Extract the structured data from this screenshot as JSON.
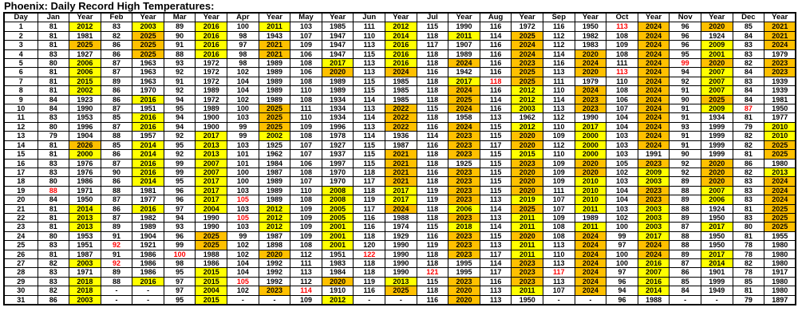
{
  "title": "Phoenix: Daily Record High Temperatures:",
  "columns": [
    "Day",
    "Jan",
    "Year",
    "Feb",
    "Year",
    "Mar",
    "Year",
    "Apr",
    "Year",
    "May",
    "Year",
    "Jun",
    "Year",
    "Jul",
    "Year",
    "Aug",
    "Year",
    "Sep",
    "Year",
    "Oct",
    "Year",
    "Nov",
    "Year",
    "Dec",
    "Year"
  ],
  "months": [
    "Jan",
    "Feb",
    "Mar",
    "Apr",
    "May",
    "Jun",
    "Jul",
    "Aug",
    "Sep",
    "Oct",
    "Nov",
    "Dec"
  ],
  "colors": {
    "highlight_year_2020s": "#FFC000",
    "highlight_year_2000_2019": "#FFFF00",
    "record_temp_red": "#FF0000",
    "grid_border": "#000000"
  },
  "highlight_rules": {
    "orange_min_year": 2020,
    "yellow_min_year": 2000
  },
  "red_cells": [
    {
      "day": 1,
      "month": "Oct"
    },
    {
      "day": 5,
      "month": "Nov"
    },
    {
      "day": 6,
      "month": "Oct"
    },
    {
      "day": 7,
      "month": "Aug"
    },
    {
      "day": 10,
      "month": "Dec"
    },
    {
      "day": 19,
      "month": "Jan"
    },
    {
      "day": 20,
      "month": "Apr"
    },
    {
      "day": 22,
      "month": "Apr"
    },
    {
      "day": 25,
      "month": "Feb"
    },
    {
      "day": 26,
      "month": "Mar"
    },
    {
      "day": 26,
      "month": "Jun"
    },
    {
      "day": 27,
      "month": "Feb"
    },
    {
      "day": 28,
      "month": "Jul"
    },
    {
      "day": 28,
      "month": "Sep"
    },
    {
      "day": 29,
      "month": "Apr"
    },
    {
      "day": 30,
      "month": "May"
    }
  ],
  "rows": [
    {
      "day": "1",
      "values": [
        "81",
        "2012",
        "83",
        "2003",
        "89",
        "2016",
        "100",
        "2011",
        "103",
        "1985",
        "111",
        "2012",
        "115",
        "1990",
        "116",
        "1972",
        "116",
        "1950",
        "113",
        "2024",
        "96",
        "2020",
        "85",
        "2021"
      ]
    },
    {
      "day": "2",
      "values": [
        "81",
        "1981",
        "82",
        "2025",
        "90",
        "2016",
        "98",
        "1943",
        "107",
        "1947",
        "110",
        "2014",
        "118",
        "2011",
        "114",
        "2025",
        "112",
        "1982",
        "108",
        "2024",
        "96",
        "1924",
        "84",
        "2021"
      ]
    },
    {
      "day": "3",
      "values": [
        "81",
        "2025",
        "86",
        "2025",
        "91",
        "2016",
        "97",
        "2021",
        "109",
        "1947",
        "113",
        "2016",
        "117",
        "1907",
        "116",
        "2024",
        "112",
        "1983",
        "109",
        "2024",
        "96",
        "2009",
        "83",
        "2024"
      ]
    },
    {
      "day": "4",
      "values": [
        "83",
        "1927",
        "86",
        "2025",
        "88",
        "2016",
        "98",
        "2021",
        "106",
        "1947",
        "115",
        "2016",
        "118",
        "1989",
        "116",
        "2024",
        "114",
        "2020",
        "108",
        "2024",
        "95",
        "2001",
        "83",
        "1979"
      ]
    },
    {
      "day": "5",
      "values": [
        "80",
        "2006",
        "87",
        "1963",
        "93",
        "1972",
        "98",
        "1989",
        "108",
        "2017",
        "113",
        "2016",
        "118",
        "2024",
        "116",
        "2023",
        "116",
        "2024",
        "111",
        "2024",
        "99",
        "2020",
        "82",
        "2023"
      ]
    },
    {
      "day": "6",
      "values": [
        "81",
        "2006",
        "87",
        "1963",
        "92",
        "1972",
        "102",
        "1989",
        "106",
        "2020",
        "113",
        "2024",
        "116",
        "1942",
        "116",
        "2025",
        "113",
        "2020",
        "113",
        "2024",
        "94",
        "2007",
        "84",
        "2023"
      ]
    },
    {
      "day": "7",
      "values": [
        "81",
        "2015",
        "89",
        "1963",
        "91",
        "1972",
        "104",
        "1989",
        "108",
        "1989",
        "115",
        "1985",
        "118",
        "2017",
        "118",
        "2025",
        "111",
        "1979",
        "110",
        "2024",
        "92",
        "2007",
        "83",
        "1939"
      ]
    },
    {
      "day": "8",
      "values": [
        "81",
        "2002",
        "86",
        "1970",
        "92",
        "1989",
        "104",
        "1989",
        "110",
        "1989",
        "115",
        "1985",
        "118",
        "2024",
        "116",
        "2012",
        "110",
        "2024",
        "108",
        "2024",
        "91",
        "2007",
        "84",
        "1939"
      ]
    },
    {
      "day": "9",
      "values": [
        "84",
        "1923",
        "86",
        "2016",
        "94",
        "1972",
        "102",
        "1989",
        "108",
        "1934",
        "114",
        "1985",
        "118",
        "2025",
        "114",
        "2012",
        "114",
        "2023",
        "106",
        "2024",
        "90",
        "2025",
        "84",
        "1981"
      ]
    },
    {
      "day": "10",
      "values": [
        "84",
        "1990",
        "87",
        "1951",
        "95",
        "1989",
        "100",
        "2025",
        "111",
        "1934",
        "113",
        "2022",
        "115",
        "2024",
        "116",
        "2003",
        "113",
        "2023",
        "107",
        "2024",
        "91",
        "2009",
        "87",
        "1950"
      ]
    },
    {
      "day": "11",
      "values": [
        "83",
        "1953",
        "85",
        "2016",
        "94",
        "1900",
        "103",
        "2025",
        "110",
        "1934",
        "114",
        "2022",
        "118",
        "1958",
        "113",
        "1962",
        "112",
        "1990",
        "104",
        "2024",
        "91",
        "1934",
        "81",
        "1977"
      ]
    },
    {
      "day": "12",
      "values": [
        "80",
        "1996",
        "87",
        "2016",
        "94",
        "1900",
        "99",
        "2025",
        "109",
        "1996",
        "113",
        "2022",
        "116",
        "2024",
        "115",
        "2012",
        "110",
        "2017",
        "104",
        "2024",
        "93",
        "1999",
        "79",
        "2010"
      ]
    },
    {
      "day": "13",
      "values": [
        "79",
        "1904",
        "88",
        "1957",
        "92",
        "2017",
        "99",
        "2002",
        "108",
        "1978",
        "114",
        "1936",
        "114",
        "2023",
        "115",
        "2020",
        "109",
        "2000",
        "103",
        "2024",
        "91",
        "1999",
        "82",
        "2010"
      ]
    },
    {
      "day": "14",
      "values": [
        "81",
        "2026",
        "85",
        "2014",
        "95",
        "2013",
        "103",
        "1925",
        "107",
        "1927",
        "115",
        "1987",
        "116",
        "2023",
        "117",
        "2020",
        "112",
        "2000",
        "103",
        "2024",
        "91",
        "1999",
        "82",
        "2025"
      ]
    },
    {
      "day": "15",
      "values": [
        "81",
        "2000",
        "86",
        "2014",
        "92",
        "2013",
        "101",
        "1962",
        "107",
        "1937",
        "115",
        "2021",
        "118",
        "2023",
        "115",
        "2015",
        "110",
        "2000",
        "103",
        "1991",
        "90",
        "1999",
        "81",
        "2025"
      ]
    },
    {
      "day": "16",
      "values": [
        "83",
        "1976",
        "87",
        "2016",
        "99",
        "2007",
        "101",
        "1984",
        "106",
        "1997",
        "115",
        "2021",
        "118",
        "1925",
        "115",
        "2023",
        "109",
        "2020",
        "105",
        "2023",
        "92",
        "2020",
        "86",
        "1980"
      ]
    },
    {
      "day": "17",
      "values": [
        "83",
        "1976",
        "90",
        "2016",
        "99",
        "2007",
        "100",
        "1987",
        "108",
        "1970",
        "118",
        "2021",
        "116",
        "2023",
        "115",
        "2020",
        "109",
        "2020",
        "102",
        "2009",
        "92",
        "2020",
        "82",
        "2013"
      ]
    },
    {
      "day": "18",
      "values": [
        "80",
        "1986",
        "86",
        "2014",
        "95",
        "2017",
        "100",
        "1989",
        "107",
        "1970",
        "117",
        "2021",
        "118",
        "2023",
        "115",
        "2020",
        "109",
        "2010",
        "103",
        "2003",
        "89",
        "2020",
        "83",
        "2024"
      ]
    },
    {
      "day": "19",
      "values": [
        "88",
        "1971",
        "88",
        "1981",
        "96",
        "2017",
        "103",
        "1989",
        "110",
        "2008",
        "118",
        "2017",
        "119",
        "2023",
        "115",
        "2020",
        "111",
        "2010",
        "104",
        "2023",
        "88",
        "2007",
        "83",
        "2024"
      ]
    },
    {
      "day": "20",
      "values": [
        "84",
        "1950",
        "87",
        "1977",
        "96",
        "2017",
        "105",
        "1989",
        "108",
        "2008",
        "119",
        "2017",
        "119",
        "2023",
        "113",
        "2019",
        "107",
        "2010",
        "104",
        "2023",
        "89",
        "2006",
        "83",
        "2024"
      ]
    },
    {
      "day": "21",
      "values": [
        "81",
        "2014",
        "86",
        "2016",
        "97",
        "2004",
        "103",
        "2012",
        "109",
        "2005",
        "117",
        "2024",
        "118",
        "2006",
        "114",
        "2025",
        "107",
        "2011",
        "103",
        "2003",
        "88",
        "1924",
        "81",
        "2025"
      ]
    },
    {
      "day": "22",
      "values": [
        "81",
        "2013",
        "87",
        "1982",
        "94",
        "1990",
        "105",
        "2012",
        "109",
        "2005",
        "116",
        "1988",
        "118",
        "2023",
        "113",
        "2011",
        "109",
        "1989",
        "102",
        "2003",
        "89",
        "1950",
        "83",
        "2025"
      ]
    },
    {
      "day": "23",
      "values": [
        "81",
        "2013",
        "89",
        "1989",
        "93",
        "1990",
        "103",
        "2012",
        "109",
        "2001",
        "116",
        "1974",
        "115",
        "2018",
        "114",
        "2011",
        "108",
        "2011",
        "100",
        "2003",
        "87",
        "2017",
        "80",
        "2025"
      ]
    },
    {
      "day": "24",
      "values": [
        "80",
        "1953",
        "91",
        "1904",
        "96",
        "2025",
        "99",
        "1987",
        "109",
        "2001",
        "118",
        "1929",
        "116",
        "2023",
        "115",
        "2020",
        "108",
        "2024",
        "99",
        "2017",
        "88",
        "1950",
        "81",
        "1955"
      ]
    },
    {
      "day": "25",
      "values": [
        "83",
        "1951",
        "92",
        "1921",
        "99",
        "2025",
        "102",
        "1898",
        "108",
        "2001",
        "120",
        "1990",
        "119",
        "2023",
        "113",
        "2011",
        "113",
        "2024",
        "97",
        "2024",
        "88",
        "1950",
        "78",
        "1980"
      ]
    },
    {
      "day": "26",
      "values": [
        "81",
        "1987",
        "91",
        "1986",
        "100",
        "1988",
        "102",
        "2020",
        "112",
        "1951",
        "122",
        "1990",
        "118",
        "2023",
        "117",
        "2011",
        "110",
        "2024",
        "100",
        "2024",
        "89",
        "2017",
        "78",
        "1980"
      ]
    },
    {
      "day": "27",
      "values": [
        "82",
        "2003",
        "92",
        "1986",
        "98",
        "1986",
        "104",
        "1992",
        "111",
        "1983",
        "118",
        "1990",
        "118",
        "1995",
        "114",
        "2023",
        "113",
        "2024",
        "100",
        "2016",
        "87",
        "2014",
        "82",
        "1980"
      ]
    },
    {
      "day": "28",
      "values": [
        "83",
        "1971",
        "89",
        "1986",
        "95",
        "2015",
        "104",
        "1992",
        "113",
        "1984",
        "118",
        "1990",
        "121",
        "1995",
        "117",
        "2023",
        "117",
        "2024",
        "97",
        "2007",
        "86",
        "1901",
        "78",
        "1917"
      ]
    },
    {
      "day": "29",
      "values": [
        "83",
        "2018",
        "88",
        "2016",
        "97",
        "2015",
        "105",
        "1992",
        "112",
        "2020",
        "119",
        "2013",
        "115",
        "2023",
        "116",
        "2023",
        "113",
        "2024",
        "96",
        "2016",
        "85",
        "1999",
        "85",
        "1980"
      ]
    },
    {
      "day": "30",
      "values": [
        "82",
        "2018",
        "-",
        "-",
        "97",
        "2004",
        "102",
        "2023",
        "114",
        "1910",
        "116",
        "2025",
        "118",
        "2020",
        "113",
        "2011",
        "107",
        "2024",
        "94",
        "2014",
        "84",
        "1949",
        "81",
        "1980"
      ]
    },
    {
      "day": "31",
      "values": [
        "86",
        "2003",
        "-",
        "-",
        "95",
        "2015",
        "-",
        "-",
        "109",
        "2012",
        "-",
        "-",
        "116",
        "2020",
        "113",
        "1950",
        "-",
        "-",
        "96",
        "1988",
        "-",
        "-",
        "79",
        "1897"
      ]
    }
  ]
}
